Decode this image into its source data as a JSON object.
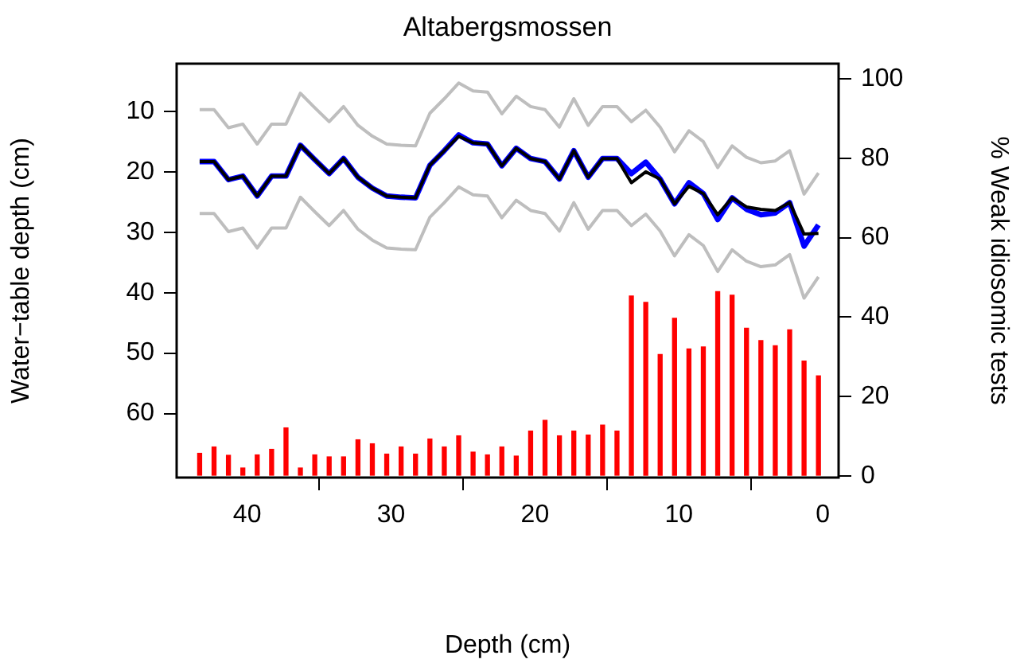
{
  "chart_data": {
    "type": "line",
    "title": "Altabergsmossen",
    "xlabel": "Depth (cm)",
    "ylabel": "Water−table depth (cm)",
    "y2label": "% Weak idiosomic tests",
    "x": [
      43.3,
      42.3,
      41.3,
      40.3,
      39.3,
      38.3,
      37.3,
      36.3,
      35.3,
      34.3,
      33.3,
      32.3,
      31.3,
      30.3,
      29.3,
      28.3,
      27.3,
      26.3,
      25.3,
      24.3,
      23.3,
      22.3,
      21.3,
      20.3,
      19.3,
      18.3,
      17.3,
      16.3,
      15.3,
      14.3,
      13.3,
      12.3,
      11.3,
      10.3,
      9.3,
      8.3,
      7.3,
      6.3,
      5.3,
      4.3,
      3.3,
      2.3,
      1.3,
      0.3
    ],
    "series": [
      {
        "type": "bar",
        "axis": "y2",
        "color": "#ff0000",
        "values": [
          5.7,
          7.3,
          5.2,
          2,
          5.3,
          6.7,
          12.1,
          2,
          5.3,
          4.8,
          4.8,
          9.1,
          8.1,
          5.5,
          7.3,
          5.5,
          9.3,
          7.3,
          10.1,
          6,
          5.3,
          7.3,
          5,
          11.3,
          14,
          10.1,
          11.3,
          10.3,
          12.8,
          11.3,
          45.3,
          43.7,
          30.6,
          39.7,
          32,
          32.5,
          46.4,
          45.5,
          37.2,
          34.1,
          32.8,
          36.8,
          28.9,
          25.2
        ]
      },
      {
        "color": "#bebebe",
        "values": [
          9.7,
          9.7,
          12.7,
          12.1,
          15.4,
          12.1,
          12.1,
          7.0,
          9.4,
          11.7,
          9.2,
          12.3,
          14.1,
          15.4,
          15.6,
          15.7,
          10.3,
          7.9,
          5.3,
          6.6,
          6.8,
          10.4,
          7.5,
          9.2,
          9.7,
          12.6,
          7.9,
          12.3,
          9.2,
          9.2,
          11.7,
          9.8,
          12.6,
          16.7,
          13.2,
          15.0,
          19.3,
          15.7,
          17.6,
          18.5,
          18.2,
          16.5,
          23.7,
          20.2
        ]
      },
      {
        "color": "#bebebe",
        "values": [
          26.9,
          26.9,
          29.9,
          29.3,
          32.6,
          29.3,
          29.3,
          24.2,
          26.6,
          28.9,
          26.4,
          29.5,
          31.3,
          32.6,
          32.8,
          32.9,
          27.5,
          25.1,
          22.5,
          23.8,
          24.0,
          27.6,
          24.7,
          26.4,
          26.9,
          29.8,
          25.1,
          29.5,
          26.4,
          26.4,
          28.9,
          27.0,
          29.8,
          33.9,
          30.4,
          32.2,
          36.5,
          32.9,
          34.8,
          35.7,
          35.4,
          33.7,
          40.9,
          37.4
        ]
      },
      {
        "color": "#0000ff",
        "values": [
          18.3,
          18.3,
          21.3,
          20.7,
          24.0,
          20.7,
          20.7,
          15.6,
          18.0,
          20.3,
          17.8,
          20.9,
          22.7,
          24.0,
          24.2,
          24.3,
          18.9,
          16.5,
          13.9,
          15.2,
          15.4,
          19.0,
          16.1,
          17.8,
          18.3,
          21.2,
          16.5,
          20.9,
          17.8,
          17.8,
          20.3,
          18.4,
          21.2,
          25.3,
          21.8,
          23.6,
          27.9,
          24.3,
          26.2,
          27.1,
          26.8,
          25.1,
          32.3,
          28.8
        ]
      },
      {
        "color": "#000000",
        "values": [
          18.3,
          18.3,
          21.3,
          20.7,
          24.0,
          20.7,
          20.7,
          15.6,
          18.0,
          20.3,
          17.8,
          20.9,
          22.7,
          24.0,
          24.2,
          24.3,
          18.9,
          16.5,
          14.1,
          15.2,
          15.4,
          19.0,
          16.1,
          17.8,
          18.3,
          21.2,
          16.5,
          20.9,
          17.8,
          17.8,
          21.8,
          20.0,
          21.2,
          25.3,
          22.4,
          23.6,
          27.1,
          24.3,
          25.8,
          26.2,
          26.4,
          25.1,
          30.3,
          30.2
        ]
      }
    ],
    "xlim": [
      44.9,
      -1.1
    ],
    "xticks": [
      40,
      30,
      20,
      10,
      0
    ],
    "ylim": [
      70.6,
      2.1
    ],
    "yticks": [
      10,
      20,
      30,
      40,
      50,
      60
    ],
    "y2lim": [
      -0.4,
      103.8
    ],
    "y2ticks": [
      0,
      20,
      40,
      60,
      80,
      100
    ],
    "grid": false,
    "legend": false,
    "marker": "none"
  }
}
